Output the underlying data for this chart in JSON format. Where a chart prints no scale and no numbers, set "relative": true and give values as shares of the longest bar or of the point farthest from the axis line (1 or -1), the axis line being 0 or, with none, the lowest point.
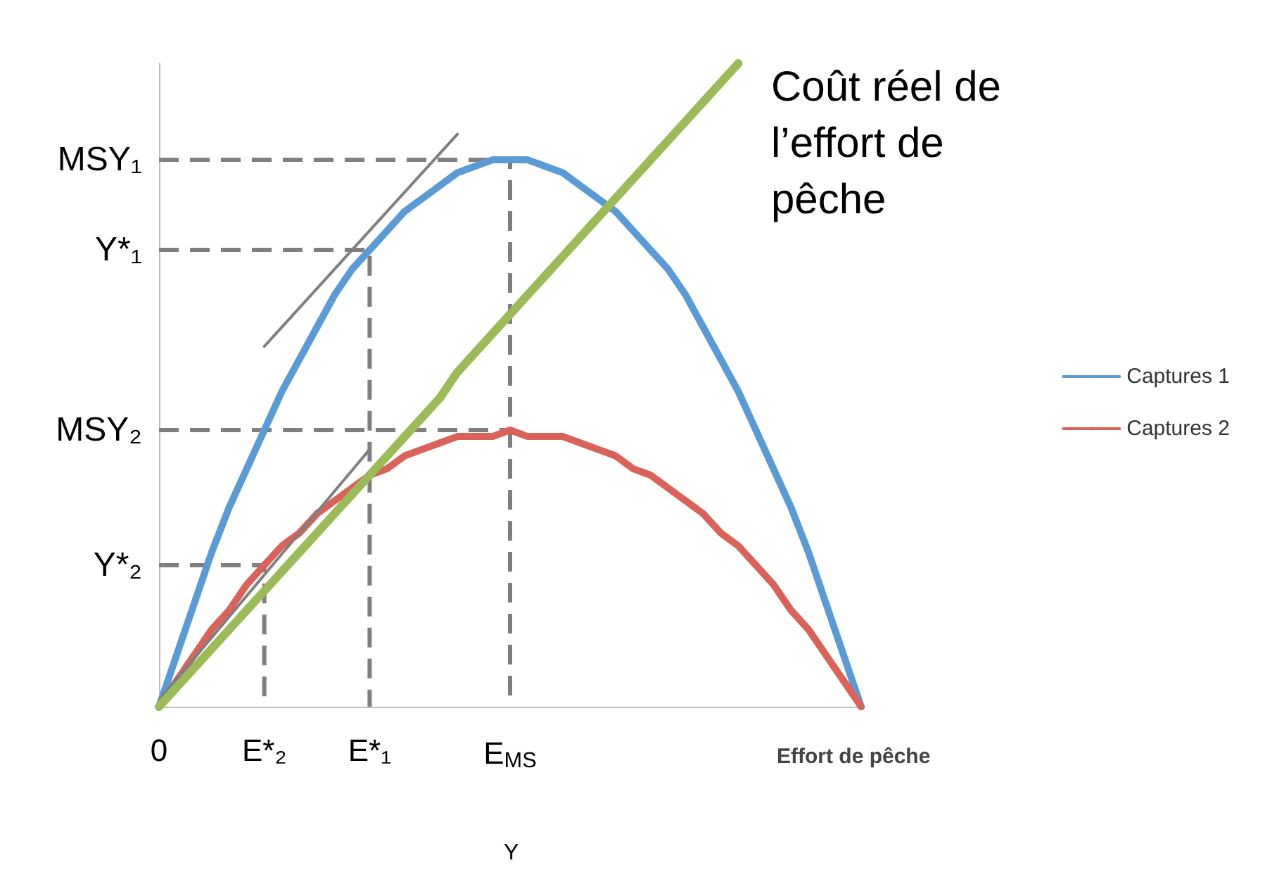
{
  "chart_data": {
    "type": "line",
    "relative": true,
    "xlabel": "Effort de pêche",
    "legend": "right",
    "marker": "none",
    "grid": false,
    "categories": [
      "0",
      null,
      null,
      null,
      null,
      null,
      "E*₂",
      null,
      null,
      null,
      null,
      null,
      "E*₁",
      null,
      null,
      null,
      null,
      null,
      null,
      null,
      "E$_{MS}$",
      null,
      null,
      null,
      null,
      null,
      null,
      null,
      null,
      null,
      null,
      null,
      null,
      null,
      null,
      null,
      null,
      null,
      null,
      null,
      null
    ],
    "series": [
      {
        "name": "Captures 1",
        "color": "#5b9bd5",
        "values": [
          0,
          0.08,
          0.16,
          0.24,
          0.31,
          0.37,
          0.43,
          0.49,
          0.54,
          0.59,
          0.64,
          0.68,
          0.71,
          0.74,
          0.77,
          0.79,
          0.81,
          0.83,
          0.84,
          0.85,
          0.85,
          0.85,
          0.84,
          0.83,
          0.81,
          0.79,
          0.77,
          0.74,
          0.71,
          0.68,
          0.64,
          0.59,
          0.54,
          0.49,
          0.43,
          0.37,
          0.31,
          0.24,
          0.16,
          0.08,
          0
        ]
      },
      {
        "name": "Captures 2",
        "color": "#d9625a",
        "values": [
          0,
          0.04,
          0.08,
          0.12,
          0.15,
          0.19,
          0.22,
          0.25,
          0.27,
          0.3,
          0.32,
          0.34,
          0.36,
          0.37,
          0.39,
          0.4,
          0.41,
          0.42,
          0.42,
          0.42,
          0.43,
          0.42,
          0.42,
          0.42,
          0.41,
          0.4,
          0.39,
          0.37,
          0.36,
          0.34,
          0.32,
          0.3,
          0.27,
          0.25,
          0.22,
          0.19,
          0.15,
          0.12,
          0.08,
          0.04,
          0
        ]
      },
      {
        "color": "#9bbb59",
        "values": [
          0,
          0.03,
          0.06,
          0.09,
          0.12,
          0.15,
          0.18,
          0.21,
          0.24,
          0.27,
          0.3,
          0.33,
          0.36,
          0.39,
          0.42,
          0.45,
          0.48,
          0.52,
          0.55,
          0.58,
          0.61,
          0.64,
          0.67,
          0.7,
          0.73,
          0.76,
          0.79,
          0.82,
          0.85,
          0.88,
          0.91,
          0.94,
          0.97,
          1,
          null,
          null,
          null,
          null,
          null,
          null,
          null
        ]
      },
      {
        "color": "#7f7f7f",
        "values": [
          null,
          null,
          null,
          null,
          null,
          null,
          0.56,
          null,
          null,
          null,
          null,
          null,
          null,
          null,
          null,
          null,
          null,
          0.89,
          null,
          null,
          null,
          null,
          null,
          null,
          null,
          null,
          null,
          null,
          null,
          null,
          null,
          null,
          null,
          null,
          null,
          null,
          null,
          null,
          null,
          null,
          null
        ]
      },
      {
        "color": "#7f7f7f",
        "values": [
          0.01,
          null,
          null,
          null,
          null,
          null,
          null,
          null,
          null,
          null,
          null,
          null,
          0.4,
          null,
          null,
          null,
          null,
          null,
          null,
          null,
          null,
          null,
          null,
          null,
          null,
          null,
          null,
          null,
          null,
          null,
          null,
          null,
          null,
          null,
          null,
          null,
          null,
          null,
          null,
          null,
          null
        ]
      },
      {
        "name": "MSY₁",
        "color": "#7f7f7f",
        "line_style": "dashed",
        "x": [
          "0",
          "E$_{MS}$",
          "E$_{MS}$"
        ],
        "values": [
          0.85,
          0.85,
          0
        ]
      },
      {
        "name": "Y*₁",
        "color": "#7f7f7f",
        "line_style": "dashed",
        "x": [
          "0",
          "E*₁",
          "E*₁"
        ],
        "values": [
          0.71,
          0.71,
          0
        ]
      },
      {
        "name": "MSY₂",
        "color": "#7f7f7f",
        "line_style": "dashed",
        "x": [
          "0",
          "E$_{MS}$"
        ],
        "values": [
          0.43,
          0.43
        ]
      },
      {
        "name": "Y*₂",
        "color": "#7f7f7f",
        "line_style": "dashed",
        "x": [
          "0",
          "E*₂",
          "E*₂"
        ],
        "values": [
          0.22,
          0.22,
          0
        ]
      }
    ],
    "annotations": [
      "Coût réel de l’effort de pêche",
      "Y"
    ]
  }
}
